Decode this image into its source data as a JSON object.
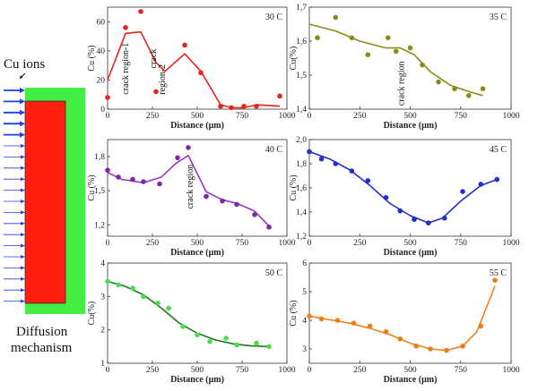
{
  "diagram": {
    "ions_label": "Cu ions",
    "caption_line1": "Diffusion",
    "caption_line2": "mechanism",
    "colors": {
      "outer": "#44ee44",
      "inner": "#ff1f0f",
      "arrow": "#1f3fe0"
    }
  },
  "chart_data": [
    {
      "type": "line",
      "title": "30 C",
      "xlabel": "Distance (μm)",
      "ylabel": "Cu (%)",
      "xlim": [
        0,
        1000
      ],
      "ylim": [
        0,
        70
      ],
      "xticks": [
        0,
        250,
        500,
        750,
        1000
      ],
      "yticks": [
        0,
        20,
        40,
        60
      ],
      "color": "#e8241c",
      "points": [
        [
          0,
          8
        ],
        [
          100,
          56
        ],
        [
          185,
          67
        ],
        [
          270,
          12
        ],
        [
          430,
          44
        ],
        [
          520,
          25
        ],
        [
          630,
          2
        ],
        [
          690,
          1
        ],
        [
          760,
          2
        ],
        [
          830,
          2
        ],
        [
          960,
          9
        ]
      ],
      "line": [
        [
          0,
          20
        ],
        [
          100,
          52
        ],
        [
          185,
          53
        ],
        [
          270,
          32
        ],
        [
          320,
          26
        ],
        [
          430,
          38
        ],
        [
          520,
          26
        ],
        [
          630,
          3
        ],
        [
          690,
          1
        ],
        [
          760,
          1
        ],
        [
          830,
          3
        ],
        [
          960,
          2
        ]
      ],
      "annotations": [
        {
          "text": "crack region-1",
          "x": 115,
          "y": 10
        },
        {
          "text": "crack",
          "x": 270,
          "y": 28
        },
        {
          "text": "region-2",
          "x": 320,
          "y": 10
        }
      ]
    },
    {
      "type": "line",
      "title": "35 C",
      "xlabel": "Distance (μm)",
      "ylabel": "Cu(%)",
      "xlim": [
        0,
        1000
      ],
      "ylim": [
        1.4,
        1.7
      ],
      "xticks": [
        0,
        250,
        500,
        750,
        1000
      ],
      "yticks": [
        1.4,
        1.5,
        1.6,
        1.7
      ],
      "ytick_labels": [
        "1,4",
        "1,5",
        "1,6",
        "1,7"
      ],
      "color": "#8a8a1a",
      "points": [
        [
          40,
          1.61
        ],
        [
          130,
          1.67
        ],
        [
          210,
          1.61
        ],
        [
          290,
          1.56
        ],
        [
          390,
          1.61
        ],
        [
          430,
          1.57
        ],
        [
          500,
          1.58
        ],
        [
          560,
          1.53
        ],
        [
          640,
          1.48
        ],
        [
          720,
          1.46
        ],
        [
          790,
          1.44
        ],
        [
          860,
          1.46
        ]
      ],
      "line": [
        [
          0,
          1.65
        ],
        [
          130,
          1.63
        ],
        [
          250,
          1.6
        ],
        [
          380,
          1.58
        ],
        [
          450,
          1.58
        ],
        [
          520,
          1.56
        ],
        [
          600,
          1.51
        ],
        [
          700,
          1.47
        ],
        [
          800,
          1.45
        ],
        [
          860,
          1.44
        ]
      ],
      "annotations": [
        {
          "text": "crack region",
          "x": 470,
          "y": 1.41
        }
      ]
    },
    {
      "type": "line",
      "title": "40 C",
      "xlabel": "Distance (μm)",
      "ylabel": "Cu (%)",
      "xlim": [
        0,
        1000
      ],
      "ylim": [
        1.1,
        1.95
      ],
      "xticks": [
        0,
        250,
        500,
        750,
        1000
      ],
      "yticks": [
        1.2,
        1.5,
        1.8
      ],
      "ytick_labels": [
        "1,2",
        "1,5",
        "1,8"
      ],
      "color": "#9b33cc",
      "point_color": "#7b2aa0",
      "points": [
        [
          0,
          1.68
        ],
        [
          60,
          1.62
        ],
        [
          140,
          1.6
        ],
        [
          200,
          1.58
        ],
        [
          290,
          1.56
        ],
        [
          390,
          1.79
        ],
        [
          450,
          1.88
        ],
        [
          550,
          1.45
        ],
        [
          640,
          1.41
        ],
        [
          720,
          1.38
        ],
        [
          820,
          1.29
        ],
        [
          900,
          1.18
        ]
      ],
      "line": [
        [
          0,
          1.66
        ],
        [
          80,
          1.6
        ],
        [
          200,
          1.57
        ],
        [
          300,
          1.62
        ],
        [
          380,
          1.74
        ],
        [
          450,
          1.81
        ],
        [
          550,
          1.49
        ],
        [
          640,
          1.42
        ],
        [
          720,
          1.39
        ],
        [
          820,
          1.32
        ],
        [
          900,
          1.19
        ]
      ],
      "annotations": [
        {
          "text": "crack region",
          "x": 475,
          "y": 1.34
        }
      ]
    },
    {
      "type": "line",
      "title": "45 C",
      "xlabel": "Distance (μm)",
      "ylabel": "Cu (%)",
      "xlim": [
        0,
        1000
      ],
      "ylim": [
        1.2,
        2.0
      ],
      "xticks": [
        0,
        250,
        500,
        750,
        1000
      ],
      "yticks": [
        1.2,
        1.4,
        1.6,
        1.8,
        2.0
      ],
      "ytick_labels": [
        "1,2",
        "1,4",
        "1,6",
        "1,8",
        "2,0"
      ],
      "color": "#1f2fc8",
      "points": [
        [
          0,
          1.9
        ],
        [
          60,
          1.84
        ],
        [
          130,
          1.8
        ],
        [
          210,
          1.74
        ],
        [
          290,
          1.66
        ],
        [
          380,
          1.52
        ],
        [
          450,
          1.41
        ],
        [
          520,
          1.34
        ],
        [
          590,
          1.31
        ],
        [
          670,
          1.35
        ],
        [
          760,
          1.57
        ],
        [
          850,
          1.63
        ],
        [
          930,
          1.67
        ]
      ],
      "line": [
        [
          0,
          1.9
        ],
        [
          100,
          1.84
        ],
        [
          200,
          1.75
        ],
        [
          300,
          1.62
        ],
        [
          400,
          1.47
        ],
        [
          500,
          1.37
        ],
        [
          590,
          1.31
        ],
        [
          660,
          1.35
        ],
        [
          750,
          1.49
        ],
        [
          850,
          1.62
        ],
        [
          930,
          1.67
        ]
      ]
    },
    {
      "type": "line",
      "title": "50 C",
      "xlabel": "Distance (μm)",
      "ylabel": "Cu(%)",
      "xlim": [
        0,
        1000
      ],
      "ylim": [
        1,
        4
      ],
      "xticks": [
        0,
        250,
        500,
        750,
        1000
      ],
      "yticks": [
        1,
        2,
        3,
        4
      ],
      "color": "#1e7a1e",
      "point_color": "#4ddc4d",
      "points": [
        [
          0,
          3.45
        ],
        [
          60,
          3.35
        ],
        [
          140,
          3.25
        ],
        [
          200,
          3.0
        ],
        [
          280,
          2.8
        ],
        [
          340,
          2.65
        ],
        [
          420,
          2.1
        ],
        [
          500,
          1.85
        ],
        [
          570,
          1.65
        ],
        [
          660,
          1.75
        ],
        [
          720,
          1.55
        ],
        [
          830,
          1.6
        ],
        [
          900,
          1.5
        ]
      ],
      "line": [
        [
          0,
          3.45
        ],
        [
          100,
          3.3
        ],
        [
          200,
          3.05
        ],
        [
          300,
          2.65
        ],
        [
          400,
          2.2
        ],
        [
          500,
          1.9
        ],
        [
          600,
          1.7
        ],
        [
          700,
          1.58
        ],
        [
          800,
          1.52
        ],
        [
          900,
          1.5
        ]
      ]
    },
    {
      "type": "line",
      "title": "55 C",
      "xlabel": "Distance (μm)",
      "ylabel": "Cu (%)",
      "xlim": [
        0,
        1000
      ],
      "ylim": [
        2.5,
        6
      ],
      "xticks": [
        0,
        250,
        500,
        750,
        1000
      ],
      "yticks": [
        3,
        4,
        5,
        6
      ],
      "color": "#f08020",
      "point_color": "#e8801a",
      "points": [
        [
          0,
          4.15
        ],
        [
          60,
          4.05
        ],
        [
          140,
          4.0
        ],
        [
          220,
          3.9
        ],
        [
          300,
          3.8
        ],
        [
          380,
          3.6
        ],
        [
          450,
          3.35
        ],
        [
          530,
          3.1
        ],
        [
          600,
          3.0
        ],
        [
          680,
          2.95
        ],
        [
          760,
          3.1
        ],
        [
          850,
          3.8
        ],
        [
          920,
          5.4
        ]
      ],
      "line": [
        [
          0,
          4.15
        ],
        [
          100,
          4.02
        ],
        [
          200,
          3.9
        ],
        [
          300,
          3.72
        ],
        [
          400,
          3.5
        ],
        [
          500,
          3.2
        ],
        [
          600,
          3.0
        ],
        [
          680,
          2.95
        ],
        [
          760,
          3.1
        ],
        [
          830,
          3.6
        ],
        [
          920,
          5.2
        ]
      ]
    }
  ]
}
